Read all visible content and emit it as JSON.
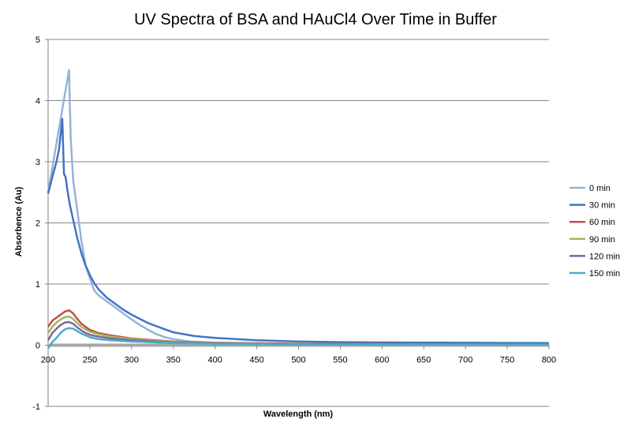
{
  "chart_data": {
    "type": "line",
    "title": "UV Spectra of BSA and HAuCl4 Over Time in Buffer",
    "xlabel": "Wavelength (nm)",
    "ylabel": "Absorbence (Au)",
    "xlim": [
      200,
      800
    ],
    "ylim": [
      -1,
      5
    ],
    "xticks": [
      200,
      250,
      300,
      350,
      400,
      450,
      500,
      550,
      600,
      650,
      700,
      750,
      800
    ],
    "yticks": [
      -1,
      0,
      1,
      2,
      3,
      4,
      5
    ],
    "grid": true,
    "legend_position": "right",
    "series": [
      {
        "name": "0 min",
        "color": "#95B3D7",
        "points": [
          [
            200,
            2.5
          ],
          [
            205,
            2.9
          ],
          [
            210,
            3.3
          ],
          [
            215,
            3.7
          ],
          [
            220,
            4.1
          ],
          [
            225,
            4.5
          ],
          [
            227,
            3.4
          ],
          [
            230,
            2.7
          ],
          [
            235,
            2.2
          ],
          [
            240,
            1.7
          ],
          [
            245,
            1.3
          ],
          [
            250,
            1.1
          ],
          [
            255,
            0.9
          ],
          [
            260,
            0.82
          ],
          [
            270,
            0.72
          ],
          [
            280,
            0.62
          ],
          [
            290,
            0.52
          ],
          [
            300,
            0.42
          ],
          [
            310,
            0.33
          ],
          [
            320,
            0.25
          ],
          [
            330,
            0.18
          ],
          [
            340,
            0.13
          ],
          [
            350,
            0.1
          ],
          [
            370,
            0.06
          ],
          [
            400,
            0.04
          ],
          [
            450,
            0.03
          ],
          [
            500,
            0.02
          ],
          [
            600,
            0.015
          ],
          [
            700,
            0.012
          ],
          [
            800,
            0.01
          ]
        ]
      },
      {
        "name": "30 min",
        "color": "#4472C4",
        "points": [
          [
            200,
            2.48
          ],
          [
            205,
            2.75
          ],
          [
            210,
            3.0
          ],
          [
            213,
            3.2
          ],
          [
            217,
            3.7
          ],
          [
            219,
            2.8
          ],
          [
            221,
            2.75
          ],
          [
            223,
            2.55
          ],
          [
            226,
            2.3
          ],
          [
            230,
            2.05
          ],
          [
            235,
            1.75
          ],
          [
            240,
            1.5
          ],
          [
            245,
            1.3
          ],
          [
            250,
            1.15
          ],
          [
            255,
            1.02
          ],
          [
            260,
            0.92
          ],
          [
            270,
            0.78
          ],
          [
            280,
            0.68
          ],
          [
            290,
            0.58
          ],
          [
            300,
            0.5
          ],
          [
            310,
            0.43
          ],
          [
            320,
            0.36
          ],
          [
            330,
            0.31
          ],
          [
            340,
            0.26
          ],
          [
            350,
            0.21
          ],
          [
            375,
            0.15
          ],
          [
            400,
            0.12
          ],
          [
            450,
            0.08
          ],
          [
            500,
            0.06
          ],
          [
            550,
            0.05
          ],
          [
            600,
            0.045
          ],
          [
            700,
            0.04
          ],
          [
            800,
            0.035
          ]
        ]
      },
      {
        "name": "60 min",
        "color": "#C0504D",
        "points": [
          [
            200,
            0.3
          ],
          [
            205,
            0.4
          ],
          [
            210,
            0.45
          ],
          [
            215,
            0.5
          ],
          [
            220,
            0.55
          ],
          [
            225,
            0.57
          ],
          [
            230,
            0.52
          ],
          [
            235,
            0.43
          ],
          [
            240,
            0.35
          ],
          [
            245,
            0.3
          ],
          [
            250,
            0.25
          ],
          [
            260,
            0.2
          ],
          [
            275,
            0.16
          ],
          [
            300,
            0.11
          ],
          [
            350,
            0.06
          ],
          [
            400,
            0.04
          ],
          [
            500,
            0.025
          ],
          [
            600,
            0.02
          ],
          [
            800,
            0.015
          ]
        ]
      },
      {
        "name": "90 min",
        "color": "#9BBB59",
        "points": [
          [
            200,
            0.2
          ],
          [
            205,
            0.3
          ],
          [
            210,
            0.37
          ],
          [
            215,
            0.42
          ],
          [
            220,
            0.46
          ],
          [
            225,
            0.47
          ],
          [
            230,
            0.43
          ],
          [
            235,
            0.36
          ],
          [
            240,
            0.3
          ],
          [
            245,
            0.26
          ],
          [
            250,
            0.22
          ],
          [
            260,
            0.18
          ],
          [
            275,
            0.14
          ],
          [
            300,
            0.1
          ],
          [
            350,
            0.055
          ],
          [
            400,
            0.035
          ],
          [
            500,
            0.02
          ],
          [
            600,
            0.015
          ],
          [
            800,
            0.012
          ]
        ]
      },
      {
        "name": "120 min",
        "color": "#8064A2",
        "points": [
          [
            200,
            0.08
          ],
          [
            205,
            0.2
          ],
          [
            210,
            0.27
          ],
          [
            215,
            0.33
          ],
          [
            220,
            0.37
          ],
          [
            225,
            0.38
          ],
          [
            230,
            0.35
          ],
          [
            235,
            0.29
          ],
          [
            240,
            0.24
          ],
          [
            245,
            0.2
          ],
          [
            250,
            0.17
          ],
          [
            260,
            0.14
          ],
          [
            275,
            0.11
          ],
          [
            300,
            0.08
          ],
          [
            350,
            0.045
          ],
          [
            400,
            0.03
          ],
          [
            500,
            0.018
          ],
          [
            600,
            0.013
          ],
          [
            800,
            0.01
          ]
        ]
      },
      {
        "name": "150 min",
        "color": "#4BACC6",
        "points": [
          [
            200,
            -0.05
          ],
          [
            205,
            0.05
          ],
          [
            210,
            0.12
          ],
          [
            215,
            0.2
          ],
          [
            220,
            0.26
          ],
          [
            225,
            0.28
          ],
          [
            230,
            0.27
          ],
          [
            235,
            0.23
          ],
          [
            240,
            0.19
          ],
          [
            245,
            0.16
          ],
          [
            250,
            0.13
          ],
          [
            260,
            0.1
          ],
          [
            275,
            0.08
          ],
          [
            300,
            0.06
          ],
          [
            350,
            0.035
          ],
          [
            400,
            0.022
          ],
          [
            500,
            0.012
          ],
          [
            600,
            0.008
          ],
          [
            800,
            0.006
          ]
        ]
      }
    ]
  }
}
